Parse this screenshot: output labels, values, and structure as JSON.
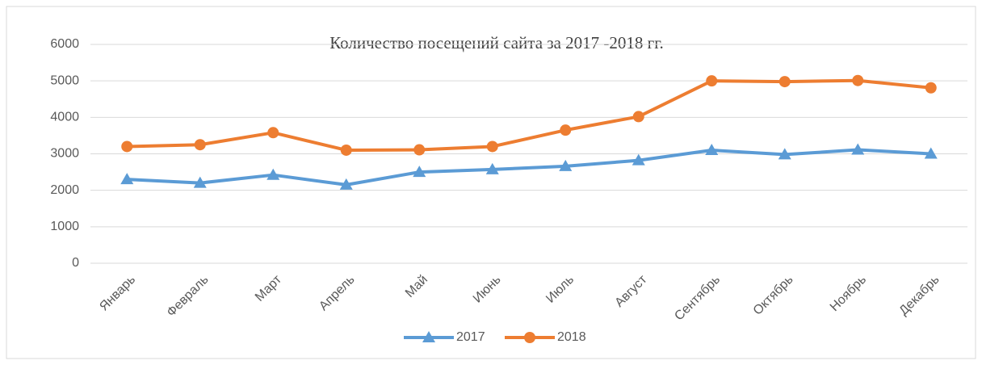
{
  "chart_data": {
    "type": "line",
    "title": "Количество посещений сайта за 2017 -2018 гг.",
    "categories": [
      "Январь",
      "Февраль",
      "Март",
      "Апрель",
      "Май",
      "Июнь",
      "Июль",
      "Август",
      "Сентябрь",
      "Октябрь",
      "Ноябрь",
      "Декабрь"
    ],
    "series": [
      {
        "name": "2017",
        "color": "#5b9bd5",
        "marker": "triangle",
        "values": [
          2300,
          2200,
          2420,
          2150,
          2500,
          2570,
          2660,
          2820,
          3100,
          2980,
          3110,
          3000
        ]
      },
      {
        "name": "2018",
        "color": "#ed7d31",
        "marker": "circle",
        "values": [
          3200,
          3250,
          3580,
          3100,
          3110,
          3200,
          3650,
          4020,
          5000,
          4980,
          5010,
          4810
        ]
      }
    ],
    "ylim": [
      0,
      6000
    ],
    "yticks": [
      0,
      1000,
      2000,
      3000,
      4000,
      5000,
      6000
    ],
    "grid": true,
    "legend": "bottom"
  }
}
